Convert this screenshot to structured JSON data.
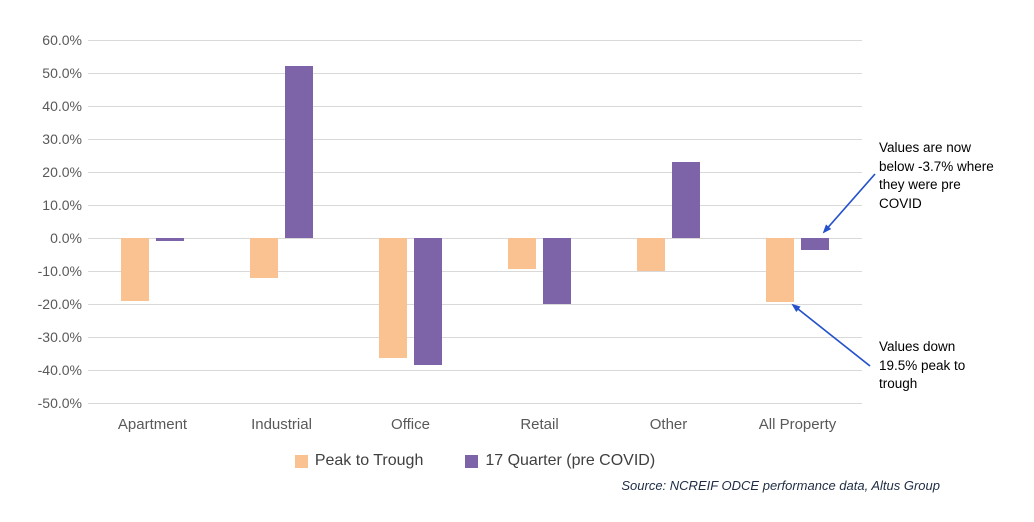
{
  "chart_data": {
    "type": "bar",
    "title": "",
    "xlabel": "",
    "ylabel": "",
    "categories": [
      "Apartment",
      "Industrial",
      "Office",
      "Retail",
      "Other",
      "All Property"
    ],
    "series": [
      {
        "name": "Peak to Trough",
        "color": "#FAC191",
        "values": [
          -19.0,
          -12.0,
          -36.5,
          -9.5,
          -10.0,
          -19.5
        ]
      },
      {
        "name": "17 Quarter (pre COVID)",
        "color": "#7D64A8",
        "values": [
          -1.0,
          52.0,
          -38.5,
          -20.0,
          23.0,
          -3.7
        ]
      }
    ],
    "ylim": [
      -50,
      60
    ],
    "yticks": [
      60,
      50,
      40,
      30,
      20,
      10,
      0,
      -10,
      -20,
      -30,
      -40,
      -50
    ],
    "ytick_labels": [
      "60.0%",
      "50.0%",
      "40.0%",
      "30.0%",
      "20.0%",
      "10.0%",
      "0.0%",
      "-10.0%",
      "-20.0%",
      "-30.0%",
      "-40.0%",
      "-50.0%"
    ],
    "grid": true,
    "legend_position": "bottom"
  },
  "annotations": [
    {
      "text": "Values are now below -3.7% where they were pre COVID"
    },
    {
      "text": "Values down 19.5% peak to trough"
    }
  ],
  "footer": {
    "source": "Source: NCREIF ODCE performance data, Altus Group"
  },
  "colors": {
    "gridline": "#d9d9d9",
    "axis_text": "#595959",
    "legend_text": "#404040",
    "annotation_arrow": "#2451CC",
    "peak_to_trough": "#FAC191",
    "pre_covid": "#7D64A8"
  }
}
